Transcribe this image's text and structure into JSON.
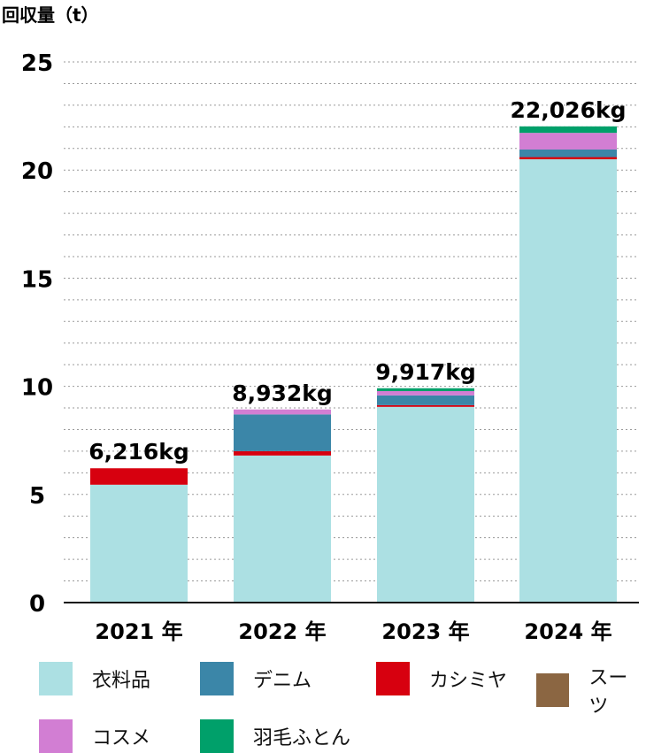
{
  "chart_data": {
    "type": "bar",
    "stacked": true,
    "ylabel": "回収量（t）",
    "ylim": [
      0,
      25
    ],
    "yticks": [
      0,
      5,
      10,
      15,
      20,
      25
    ],
    "grid": true,
    "legend_position": "bottom",
    "categories": [
      "2021 年",
      "2022 年",
      "2023 年",
      "2024 年"
    ],
    "totals": [
      "6,216kg",
      "8,932kg",
      "9,917kg",
      "22,026kg"
    ],
    "series": [
      {
        "name": "衣料品",
        "color": "#ace0e3",
        "values": [
          5.45,
          6.8,
          9.05,
          20.5
        ]
      },
      {
        "name": "カシミヤ",
        "color": "#d7000f",
        "values": [
          0.76,
          0.2,
          0.08,
          0.1
        ]
      },
      {
        "name": "デニム",
        "color": "#3b86a8",
        "values": [
          0,
          1.7,
          0.45,
          0.35
        ]
      },
      {
        "name": "スーツ",
        "color": "#8b6642",
        "values": [
          0,
          0,
          0,
          0
        ]
      },
      {
        "name": "コスメ",
        "color": "#d27ed3",
        "values": [
          0,
          0.23,
          0.2,
          0.77
        ]
      },
      {
        "name": "羽毛ふとん",
        "color": "#00a06a",
        "values": [
          0,
          0,
          0.13,
          0.3
        ]
      }
    ],
    "legend_order": [
      "衣料品",
      "デニム",
      "カシミヤ",
      "スーツ",
      "コスメ",
      "羽毛ふとん"
    ]
  }
}
